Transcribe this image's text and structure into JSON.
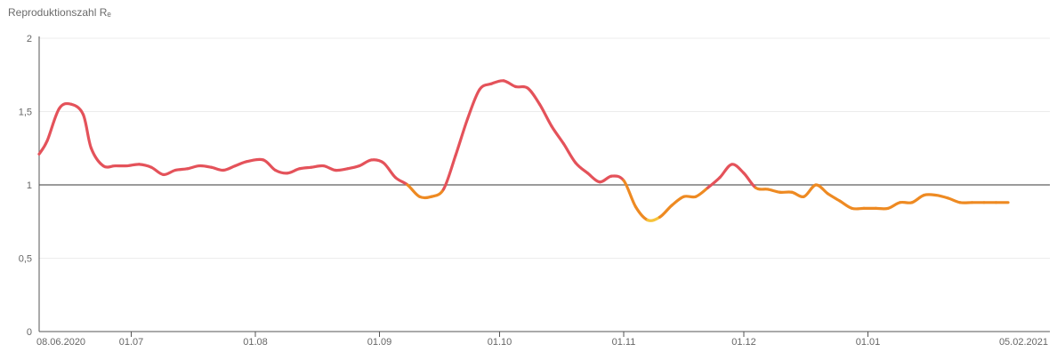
{
  "chart_data": {
    "type": "line",
    "title": "Reproduktionszahl Rₑ",
    "xlabel": "",
    "ylabel": "",
    "x_ticks": [
      "08.06.2020",
      "01.07",
      "01.08",
      "01.09",
      "01.10",
      "01.11",
      "01.12",
      "01.01",
      "05.02.2021"
    ],
    "y_ticks": [
      "0",
      "0,5",
      "1",
      "1,5",
      "2"
    ],
    "ylim": [
      0,
      2
    ],
    "reference_line": 1,
    "grid": true,
    "colors": {
      "above_one": "#e4525a",
      "below_one": "#ee8a22",
      "low": "#f6c33a",
      "reference": "#7a7a7a",
      "grid": "#ececec",
      "axis": "#555555"
    },
    "series": [
      {
        "dates": [
          "08.06.2020",
          "10.06.2020",
          "13.06.2020",
          "16.06.2020",
          "19.06.2020",
          "21.06.2020",
          "24.06.2020",
          "27.06.2020",
          "30.06.2020",
          "03.07.2020",
          "06.07.2020",
          "09.07.2020",
          "12.07.2020",
          "15.07.2020",
          "18.07.2020",
          "21.07.2020",
          "24.07.2020",
          "27.07.2020",
          "30.07.2020",
          "03.08.2020",
          "06.08.2020",
          "09.08.2020",
          "12.08.2020",
          "15.08.2020",
          "18.08.2020",
          "21.08.2020",
          "24.08.2020",
          "27.08.2020",
          "30.08.2020",
          "02.09.2020",
          "05.09.2020",
          "08.09.2020",
          "11.09.2020",
          "14.09.2020",
          "17.09.2020",
          "20.09.2020",
          "23.09.2020",
          "26.09.2020",
          "29.09.2020",
          "02.10.2020",
          "05.10.2020",
          "08.10.2020",
          "11.10.2020",
          "14.10.2020",
          "17.10.2020",
          "20.10.2020",
          "23.10.2020",
          "26.10.2020",
          "29.10.2020",
          "01.11.2020",
          "04.11.2020",
          "07.11.2020",
          "10.11.2020",
          "13.11.2020",
          "16.11.2020",
          "19.11.2020",
          "22.11.2020",
          "25.11.2020",
          "28.11.2020",
          "01.12.2020",
          "04.12.2020",
          "07.12.2020",
          "10.12.2020",
          "13.12.2020",
          "16.12.2020",
          "19.12.2020",
          "22.12.2020",
          "25.12.2020",
          "28.12.2020",
          "31.12.2020",
          "03.01.2021",
          "06.01.2021",
          "09.01.2021",
          "12.01.2021",
          "15.01.2021",
          "18.01.2021",
          "21.01.2021",
          "24.01.2021",
          "27.01.2021",
          "30.01.2021",
          "02.02.2021",
          "05.02.2021"
        ],
        "values": [
          1.21,
          1.3,
          1.52,
          1.55,
          1.48,
          1.25,
          1.13,
          1.13,
          1.13,
          1.14,
          1.12,
          1.07,
          1.1,
          1.11,
          1.13,
          1.12,
          1.1,
          1.13,
          1.16,
          1.17,
          1.1,
          1.08,
          1.11,
          1.12,
          1.13,
          1.1,
          1.11,
          1.13,
          1.17,
          1.15,
          1.05,
          1.0,
          0.92,
          0.92,
          0.97,
          1.2,
          1.45,
          1.65,
          1.69,
          1.71,
          1.67,
          1.66,
          1.55,
          1.4,
          1.28,
          1.15,
          1.08,
          1.02,
          1.06,
          1.03,
          0.85,
          0.76,
          0.78,
          0.86,
          0.92,
          0.92,
          0.98,
          1.05,
          1.14,
          1.08,
          0.98,
          0.97,
          0.95,
          0.95,
          0.92,
          1.0,
          0.94,
          0.89,
          0.84,
          0.84,
          0.84,
          0.84,
          0.88,
          0.88,
          0.93,
          0.93,
          0.91,
          0.88,
          0.88,
          0.88,
          0.88,
          0.88
        ]
      }
    ]
  }
}
